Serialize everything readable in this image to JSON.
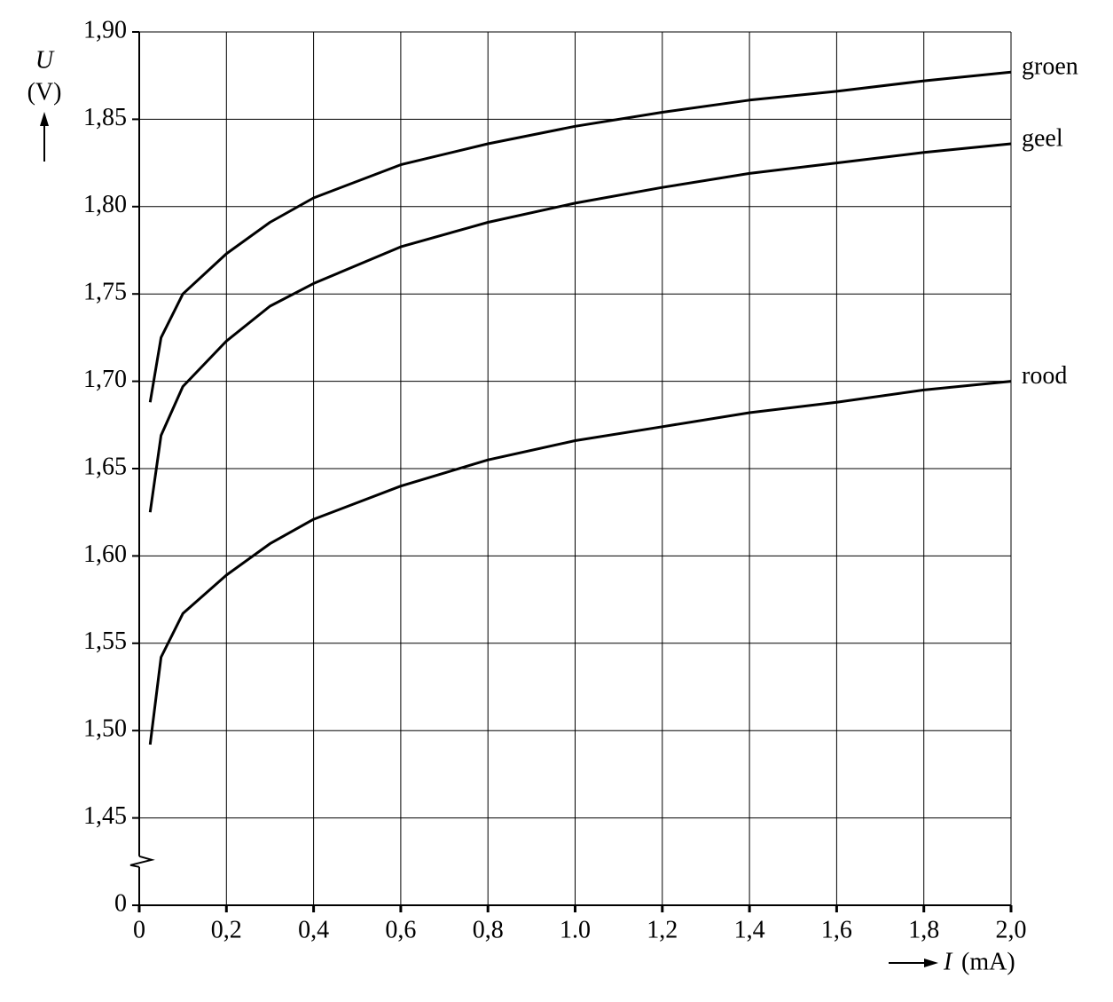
{
  "chart_data": {
    "type": "line",
    "y_label": "U",
    "y_unit": "(V)",
    "x_label": "I",
    "x_unit": "(mA)",
    "x": [
      0.025,
      0.05,
      0.1,
      0.2,
      0.3,
      0.4,
      0.6,
      0.8,
      1.0,
      1.2,
      1.4,
      1.6,
      1.8,
      2.0
    ],
    "series": [
      {
        "name": "groen",
        "color": "#000000",
        "values": [
          1.688,
          1.725,
          1.75,
          1.773,
          1.791,
          1.805,
          1.824,
          1.836,
          1.846,
          1.854,
          1.861,
          1.866,
          1.872,
          1.877
        ]
      },
      {
        "name": "geel",
        "color": "#000000",
        "values": [
          1.625,
          1.669,
          1.697,
          1.723,
          1.743,
          1.756,
          1.777,
          1.791,
          1.802,
          1.811,
          1.819,
          1.825,
          1.831,
          1.836
        ]
      },
      {
        "name": "rood",
        "color": "#000000",
        "values": [
          1.492,
          1.542,
          1.567,
          1.589,
          1.607,
          1.621,
          1.64,
          1.655,
          1.666,
          1.674,
          1.682,
          1.688,
          1.695,
          1.7
        ]
      }
    ],
    "xlim": [
      0,
      2.0
    ],
    "xticks": [
      0,
      {
        "value": 0.2,
        "label": "0,2"
      },
      {
        "value": 0.4,
        "label": "0,4"
      },
      {
        "value": 0.6,
        "label": "0,6"
      },
      {
        "value": 0.8,
        "label": "0,8"
      },
      {
        "value": 1.0,
        "label": "1.0"
      },
      {
        "value": 1.2,
        "label": "1,2"
      },
      {
        "value": 1.4,
        "label": "1,4"
      },
      {
        "value": 1.6,
        "label": "1,6"
      },
      {
        "value": 1.8,
        "label": "1,8"
      },
      {
        "value": 2.0,
        "label": "2,0"
      }
    ],
    "ylim": [
      0,
      1.9
    ],
    "yticks": [
      0,
      {
        "value": 1.45,
        "label": "1,45"
      },
      {
        "value": 1.5,
        "label": "1,50"
      },
      {
        "value": 1.55,
        "label": "1,55"
      },
      {
        "value": 1.6,
        "label": "1,60"
      },
      {
        "value": 1.65,
        "label": "1,65"
      },
      {
        "value": 1.7,
        "label": "1,70"
      },
      {
        "value": 1.75,
        "label": "1,75"
      },
      {
        "value": 1.8,
        "label": "1,80"
      },
      {
        "value": 1.85,
        "label": "1,85"
      },
      {
        "value": 1.9,
        "label": "1,90"
      }
    ],
    "ybreak": true,
    "grid": true
  }
}
